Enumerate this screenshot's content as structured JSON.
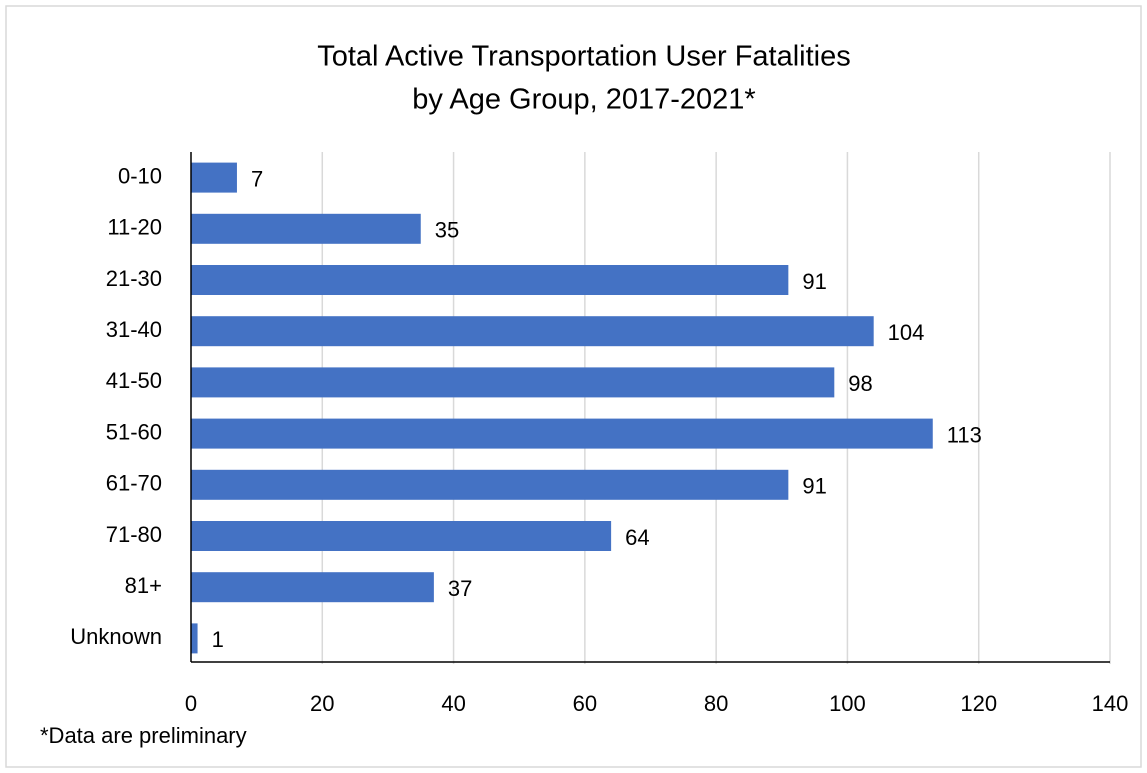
{
  "chart_data": {
    "type": "hbar",
    "title": [
      "Total Active Transportation User Fatalities",
      "by Age Group, 2017-2021*"
    ],
    "footnote": "*Data are preliminary",
    "categories": [
      "0-10",
      "11-20",
      "21-30",
      "31-40",
      "41-50",
      "51-60",
      "61-70",
      "71-80",
      "81+",
      "Unknown"
    ],
    "values": [
      7,
      35,
      91,
      104,
      98,
      113,
      91,
      64,
      37,
      1
    ],
    "color": "#4472c4",
    "xlim": [
      0,
      140
    ],
    "xticks": [
      0,
      20,
      40,
      60,
      80,
      100,
      120,
      140
    ],
    "grid": true
  }
}
